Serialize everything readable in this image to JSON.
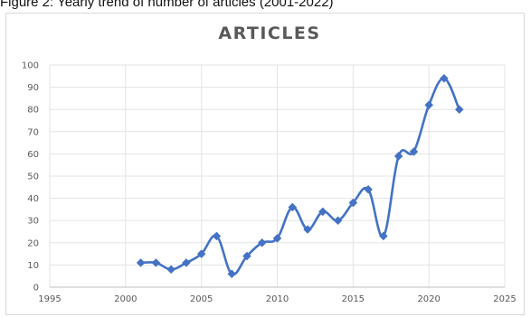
{
  "caption": "Figure 2: Yearly trend of number of articles (2001-2022)",
  "chart_data": {
    "type": "line",
    "title": "ARTICLES",
    "xlabel": "",
    "ylabel": "",
    "xlim": [
      1995,
      2025
    ],
    "ylim": [
      0,
      100
    ],
    "xticks": [
      1995,
      2000,
      2005,
      2010,
      2015,
      2020,
      2025
    ],
    "yticks": [
      0,
      10,
      20,
      30,
      40,
      50,
      60,
      70,
      80,
      90,
      100
    ],
    "grid": true,
    "smooth": true,
    "marker": "diamond",
    "color": "#4472c4",
    "series": [
      {
        "x": [
          2001,
          2002,
          2003,
          2004,
          2005,
          2006,
          2007,
          2008,
          2009,
          2010,
          2011,
          2012,
          2013,
          2014,
          2015,
          2016,
          2017,
          2018,
          2019,
          2020,
          2021,
          2022
        ],
        "y": [
          11,
          11,
          8,
          11,
          15,
          23,
          6,
          14,
          20,
          22,
          36,
          26,
          34,
          30,
          38,
          44,
          23,
          59,
          61,
          82,
          94,
          80
        ]
      }
    ]
  }
}
